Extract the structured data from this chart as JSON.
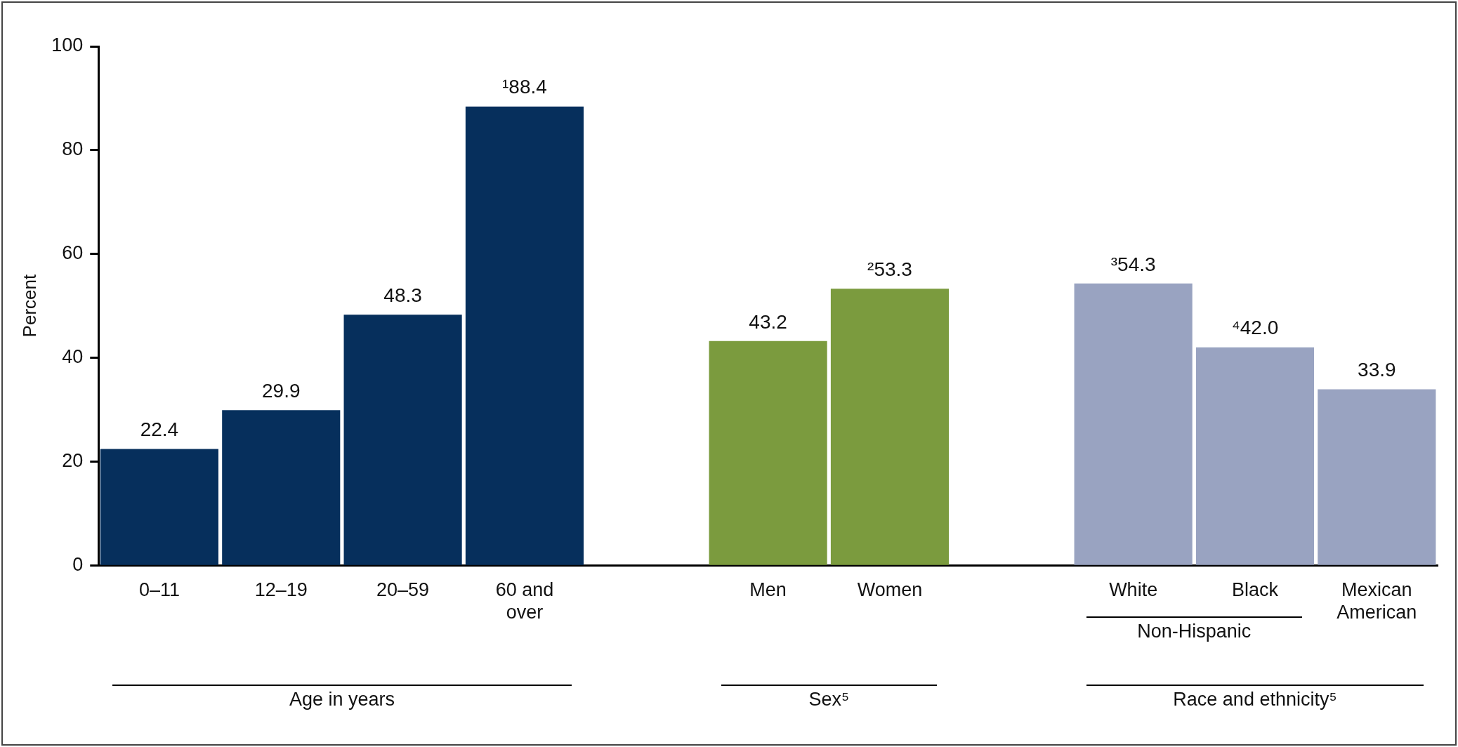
{
  "chart_data": {
    "type": "bar",
    "ylabel": "Percent",
    "categories": [
      "0–11",
      "12–19",
      "20–59",
      "60 and over",
      null,
      "Men",
      "Women",
      null,
      "White",
      "Black",
      "Mexican American"
    ],
    "values": [
      22.4,
      29.9,
      48.3,
      88.4,
      null,
      43.2,
      53.3,
      null,
      54.3,
      42.0,
      33.9
    ],
    "value_labels": [
      "22.4",
      "29.9",
      "48.3",
      "¹88.4",
      null,
      "43.2",
      "²53.3",
      null,
      "³54.3",
      "⁴42.0",
      "33.9"
    ],
    "colors": [
      "#062f5c",
      "#062f5c",
      "#062f5c",
      "#062f5c",
      "#ffffff",
      "#7b9b3e",
      "#7b9b3e",
      "#ffffff",
      "#99a3c1",
      "#99a3c1",
      "#99a3c1"
    ],
    "ylim": [
      0,
      100
    ],
    "yticks": [
      0,
      20,
      40,
      60,
      80,
      100
    ],
    "grid": false,
    "legend": false,
    "annotations": [
      "Non-Hispanic",
      "Age in years",
      "Sex⁵",
      "Race and ethnicity⁵"
    ]
  }
}
